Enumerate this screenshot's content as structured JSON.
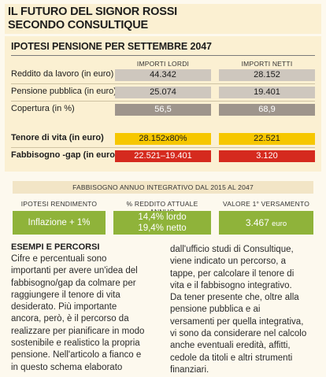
{
  "title": {
    "line1": "IL FUTURO DEL SIGNOR ROSSI",
    "line2": "SECONDO CONSULTIQUE"
  },
  "section1": {
    "subtitle": "IPOTESI PENSIONE PER SETTEMBRE 2047",
    "col_lordi": "IMPORTI LORDI",
    "col_netti": "IMPORTI NETTI",
    "rows": [
      {
        "label": "Reddito da lavoro (in euro)",
        "lordo": "44.342",
        "netto": "28.152"
      },
      {
        "label": "Pensione pubblica (in euro)",
        "lordo": "25.074",
        "netto": "19.401"
      },
      {
        "label": "Copertura (in %)",
        "lordo": "56,5",
        "netto": "68,9"
      }
    ],
    "tenore": {
      "label": "Tenore di vita (in euro)",
      "lordo": "28.152x80%",
      "netto": "22.521"
    },
    "fabbisogno": {
      "label": "Fabbisogno -gap (in euro)",
      "lordo": "22.521–19.401",
      "netto": "3.120"
    }
  },
  "section2": {
    "header": "FABBISOGNO ANNUO INTEGRATIVO DAL 2015 AL 2047",
    "col1": "IPOTESI RENDIMENTO",
    "col2": "% REDDITO ATTUALE ANNUO",
    "col3": "VALORE 1° VERSAMENTO",
    "inflazione": "Inflazione + 1%",
    "lordo": "14,4% lordo",
    "netto": "19,4% netto",
    "versamento_value": "3.467",
    "versamento_unit": "euro"
  },
  "section3": {
    "title": "ESEMPI E PERCORSI",
    "left": [
      "Cifre e percentuali sono",
      "importanti per avere un'idea del",
      "fabbisogno/gap da colmare per",
      "raggiungere il tenore di vita",
      "desiderato. Più importante",
      "ancora, però, è il percorso da",
      "realizzare per pianificare in modo",
      "sostenibile e realistico la propria",
      "pensione. Nell'articolo a fianco e",
      "in questo schema elaborato"
    ],
    "right": [
      "dall'ufficio studi di Consultique,",
      "viene indicato un percorso, a",
      "tappe, per calcolare il tenore di",
      "vita e il fabbisogno integrativo.",
      "Da tener presente che, oltre alla",
      "pensione pubblica e ai",
      "versamenti per quella integrativa,",
      "vi sono da considerare nel calcolo",
      "anche eventuali eredità, affitti,",
      "cedole da titoli e altri strumenti",
      "finanziari."
    ]
  },
  "colors": {
    "cream": "#fbf0d2",
    "grey_cell": "#cec7be",
    "dark_cell": "#9e958c",
    "yellow": "#f6c700",
    "red": "#d52a1e",
    "green": "#8fb33a"
  }
}
